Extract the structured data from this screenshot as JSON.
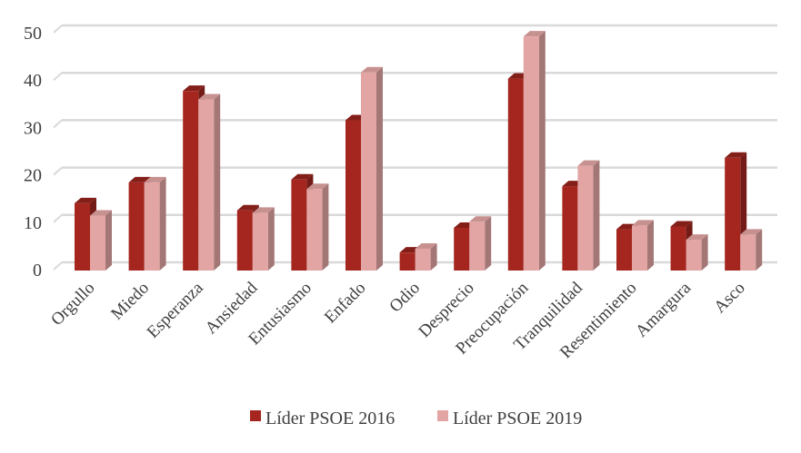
{
  "chart_data": {
    "type": "bar",
    "title": "",
    "xlabel": "",
    "ylabel": "",
    "ylim": [
      0,
      50
    ],
    "yticks": [
      "0",
      "10",
      "20",
      "30",
      "40",
      "50"
    ],
    "grid": true,
    "legend_position": "bottom",
    "categories": [
      "Orgullo",
      "Miedo",
      "Esperanza",
      "Ansiedad",
      "Entusiasmo",
      "Enfado",
      "Odio",
      "Desprecio",
      "Preocupación",
      "Tranquilidad",
      "Resentimiento",
      "Amargura",
      "Asco"
    ],
    "series": [
      {
        "name": "Líder PSOE 2016",
        "color": "#a5261f",
        "values": [
          14.2,
          18.6,
          37.9,
          12.7,
          19.2,
          31.7,
          3.8,
          9.0,
          40.5,
          17.8,
          8.7,
          9.3,
          23.8
        ]
      },
      {
        "name": "Líder PSOE 2019",
        "color": "#e2a5a4",
        "values": [
          11.6,
          18.6,
          36.1,
          12.2,
          17.2,
          41.8,
          4.6,
          10.3,
          49.4,
          22.1,
          9.5,
          6.5,
          7.6
        ]
      }
    ]
  }
}
